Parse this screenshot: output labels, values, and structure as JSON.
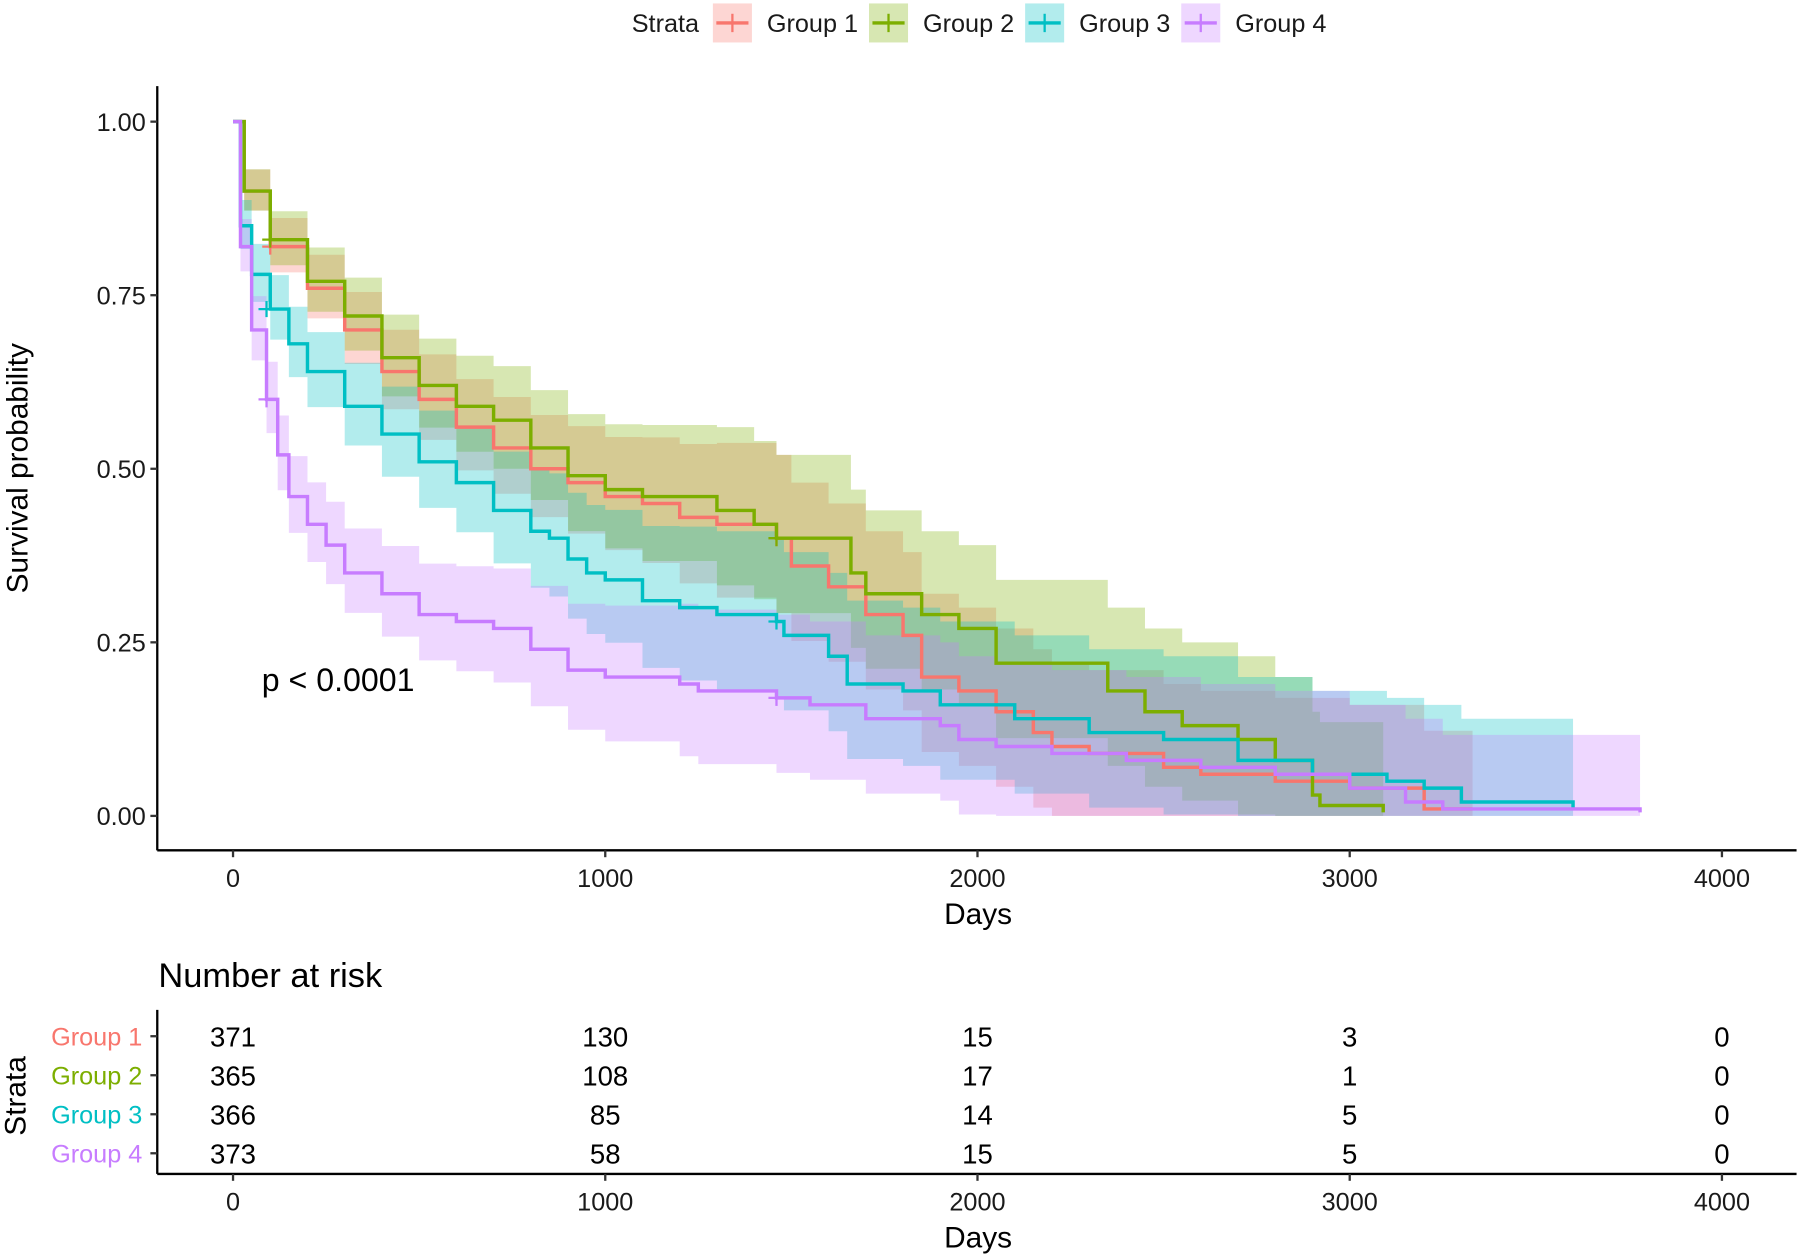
{
  "chart_data": {
    "type": "line",
    "subtype": "kaplan-meier",
    "xlabel": "Days",
    "ylabel": "Survival probability",
    "xlim": [
      0,
      4000
    ],
    "ylim": [
      0,
      1
    ],
    "xticks": [
      "0",
      "1000",
      "2000",
      "3000",
      "4000"
    ],
    "yticks": [
      "0.00",
      "0.25",
      "0.50",
      "0.75",
      "1.00"
    ],
    "grid": false,
    "legend": {
      "title": "Strata",
      "placement": "top"
    },
    "annotation": "p < 0.0001",
    "series": [
      {
        "name": "Group 1",
        "color": "#F8766D",
        "t": [
          0,
          30,
          100,
          200,
          300,
          400,
          500,
          600,
          700,
          800,
          900,
          1000,
          1100,
          1200,
          1300,
          1460,
          1500,
          1600,
          1700,
          1800,
          1850,
          1950,
          2050,
          2150,
          2200,
          2300,
          2500,
          2600,
          2800,
          3000,
          3200,
          3330
        ],
        "s": [
          1,
          0.9,
          0.82,
          0.76,
          0.7,
          0.64,
          0.6,
          0.56,
          0.53,
          0.5,
          0.48,
          0.46,
          0.45,
          0.43,
          0.42,
          0.4,
          0.36,
          0.33,
          0.29,
          0.26,
          0.2,
          0.18,
          0.15,
          0.12,
          0.1,
          0.09,
          0.07,
          0.06,
          0.05,
          0.04,
          0.01,
          0.01
        ],
        "censored": [
          [
            100,
            0.82
          ],
          [
            1460,
            0.4
          ]
        ]
      },
      {
        "name": "Group 2",
        "color": "#7CAE00",
        "t": [
          0,
          30,
          100,
          200,
          300,
          400,
          500,
          600,
          700,
          800,
          900,
          1000,
          1100,
          1300,
          1400,
          1460,
          1630,
          1660,
          1700,
          1800,
          1850,
          1950,
          2050,
          2250,
          2350,
          2450,
          2550,
          2700,
          2800,
          2900,
          2920,
          3090
        ],
        "s": [
          1,
          0.9,
          0.83,
          0.77,
          0.72,
          0.66,
          0.62,
          0.59,
          0.57,
          0.53,
          0.49,
          0.47,
          0.46,
          0.44,
          0.42,
          0.4,
          0.4,
          0.35,
          0.32,
          0.32,
          0.29,
          0.27,
          0.22,
          0.22,
          0.18,
          0.15,
          0.13,
          0.11,
          0.08,
          0.03,
          0.015,
          0.005
        ],
        "censored": [
          [
            100,
            0.83
          ],
          [
            1460,
            0.4
          ]
        ]
      },
      {
        "name": "Group 3",
        "color": "#00BFC4",
        "t": [
          0,
          20,
          50,
          100,
          150,
          200,
          300,
          400,
          500,
          600,
          700,
          800,
          850,
          900,
          950,
          1000,
          1100,
          1200,
          1300,
          1460,
          1480,
          1600,
          1650,
          1800,
          1900,
          2100,
          2300,
          2500,
          2700,
          2900,
          3100,
          3200,
          3300,
          3550,
          3600
        ],
        "s": [
          1,
          0.85,
          0.78,
          0.73,
          0.68,
          0.64,
          0.59,
          0.55,
          0.51,
          0.48,
          0.44,
          0.41,
          0.4,
          0.37,
          0.35,
          0.34,
          0.31,
          0.3,
          0.29,
          0.28,
          0.26,
          0.23,
          0.19,
          0.18,
          0.16,
          0.14,
          0.12,
          0.11,
          0.08,
          0.06,
          0.05,
          0.04,
          0.02,
          0.02,
          0.01
        ],
        "censored": [
          [
            90,
            0.73
          ],
          [
            1460,
            0.28
          ]
        ]
      },
      {
        "name": "Group 4",
        "color": "#C77CFF",
        "t": [
          0,
          20,
          50,
          90,
          120,
          150,
          200,
          250,
          300,
          400,
          500,
          600,
          700,
          800,
          900,
          1000,
          1200,
          1250,
          1460,
          1550,
          1700,
          1900,
          1950,
          2050,
          2200,
          2400,
          2600,
          2800,
          3000,
          3150,
          3250,
          3780
        ],
        "s": [
          1,
          0.82,
          0.7,
          0.6,
          0.52,
          0.46,
          0.42,
          0.39,
          0.35,
          0.32,
          0.29,
          0.28,
          0.27,
          0.24,
          0.21,
          0.2,
          0.19,
          0.18,
          0.17,
          0.16,
          0.14,
          0.13,
          0.11,
          0.1,
          0.09,
          0.08,
          0.07,
          0.06,
          0.04,
          0.02,
          0.01,
          0.005
        ],
        "censored": [
          [
            90,
            0.6
          ],
          [
            1460,
            0.17
          ]
        ]
      }
    ]
  },
  "risk_table": {
    "title": "Number at risk",
    "ylabel": "Strata",
    "xlabel": "Days",
    "times": [
      "0",
      "1000",
      "2000",
      "3000",
      "4000"
    ],
    "rows": [
      {
        "name": "Group 1",
        "values": [
          "371",
          "130",
          "15",
          "3",
          "0"
        ]
      },
      {
        "name": "Group 2",
        "values": [
          "365",
          "108",
          "17",
          "1",
          "0"
        ]
      },
      {
        "name": "Group 3",
        "values": [
          "366",
          "85",
          "14",
          "5",
          "0"
        ]
      },
      {
        "name": "Group 4",
        "values": [
          "373",
          "58",
          "15",
          "5",
          "0"
        ]
      }
    ]
  }
}
